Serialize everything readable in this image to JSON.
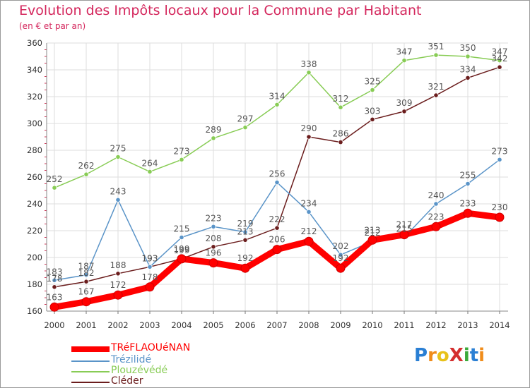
{
  "header": {
    "title": "Evolution des Impôts locaux pour la Commune par Habitant",
    "subtitle": "(en € et par an)"
  },
  "colors": {
    "title": "#d4265c",
    "axis_text": "#333333",
    "grid": "#dddddd"
  },
  "logo": {
    "text": "ProXiti",
    "letters": [
      {
        "ch": "P",
        "color": "#2a7fd4"
      },
      {
        "ch": "r",
        "color": "#f08c1a"
      },
      {
        "ch": "o",
        "color": "#e8c21a"
      },
      {
        "ch": "X",
        "color": "#d42e2e"
      },
      {
        "ch": "i",
        "color": "#3aaa3a"
      },
      {
        "ch": "t",
        "color": "#2a7fd4"
      },
      {
        "ch": "i",
        "color": "#f08c1a"
      }
    ]
  },
  "chart_data": {
    "type": "line",
    "title": "Evolution des Impôts locaux pour la Commune par Habitant",
    "subtitle": "(en € et par an)",
    "xlabel": "",
    "ylabel": "",
    "x": [
      2000,
      2001,
      2002,
      2003,
      2004,
      2005,
      2006,
      2007,
      2008,
      2009,
      2010,
      2011,
      2012,
      2013,
      2014
    ],
    "ylim": [
      160,
      360
    ],
    "yticks": [
      160,
      180,
      200,
      220,
      240,
      260,
      280,
      300,
      320,
      340,
      360
    ],
    "grid": true,
    "legend_position": "bottom-left",
    "series": [
      {
        "name": "TRéFLAOUéNAN",
        "color": "#ff0000",
        "width": "thick",
        "values": [
          163,
          167,
          172,
          178,
          199,
          196,
          192,
          206,
          212,
          192,
          213,
          217,
          223,
          233,
          230
        ]
      },
      {
        "name": "Trézilidé",
        "color": "#5a94c8",
        "width": "thin",
        "values": [
          183,
          187,
          243,
          193,
          215,
          223,
          219,
          256,
          234,
          202,
          212,
          215,
          240,
          255,
          273
        ]
      },
      {
        "name": "Plouzévédé",
        "color": "#88cc55",
        "width": "thin",
        "values": [
          252,
          262,
          275,
          264,
          273,
          289,
          297,
          314,
          338,
          312,
          325,
          347,
          351,
          350,
          347
        ]
      },
      {
        "name": "Cléder",
        "color": "#6b1d1d",
        "width": "thin",
        "values": [
          178,
          182,
          188,
          193,
          199,
          208,
          213,
          222,
          290,
          286,
          303,
          309,
          321,
          334,
          342
        ]
      }
    ]
  }
}
